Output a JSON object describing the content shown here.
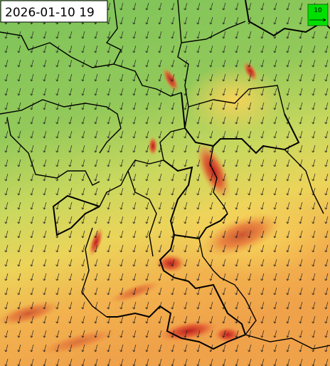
{
  "map": {
    "timestamp": "2026-01-10 19",
    "legend": {
      "wind_reference": 10
    }
  }
}
